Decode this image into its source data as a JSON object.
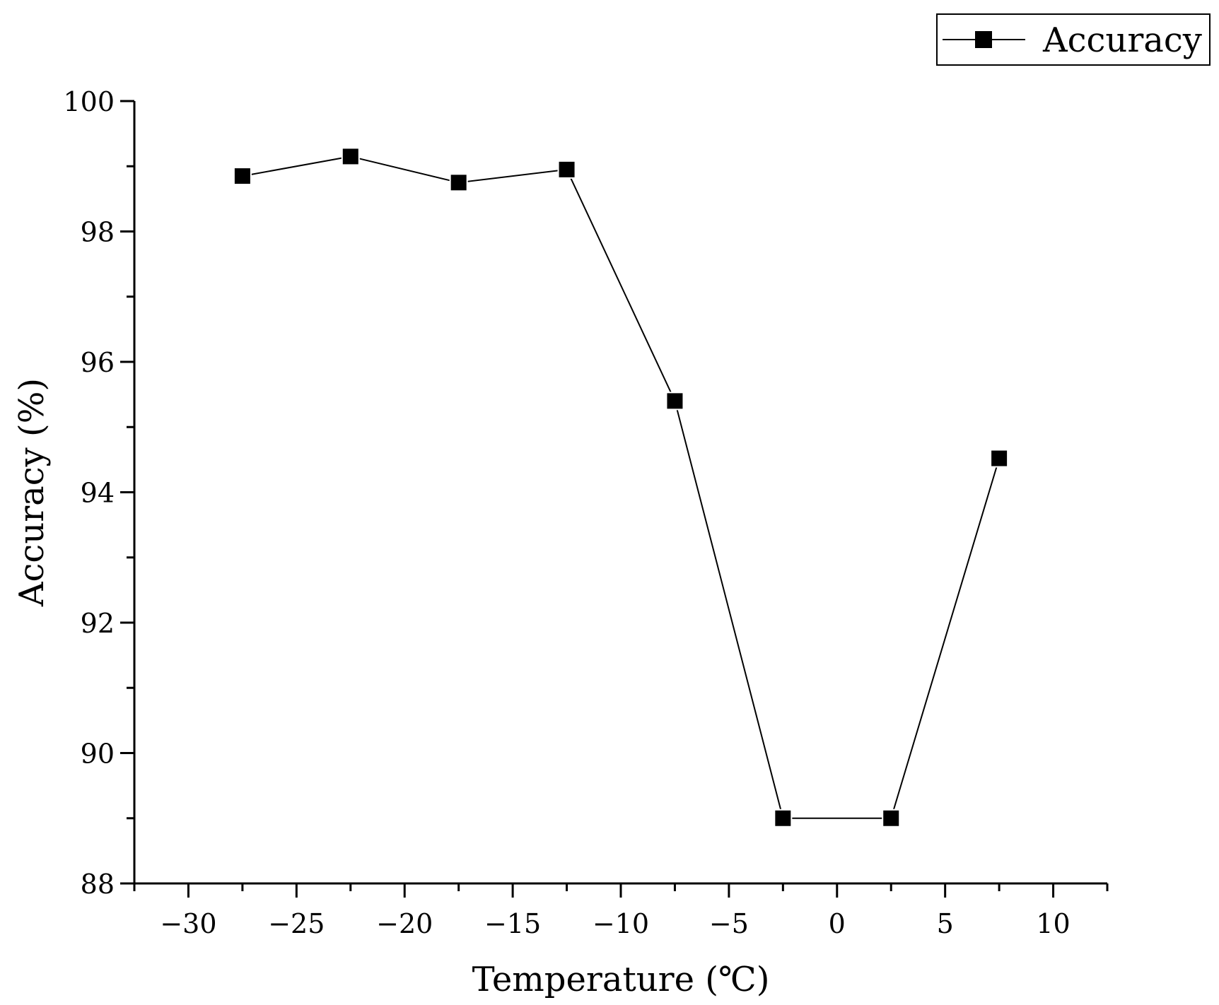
{
  "chart_data": {
    "type": "line",
    "xlabel": "Temperature (℃)",
    "ylabel": "Accuracy (%)",
    "xlim": [
      -32.5,
      12.5
    ],
    "ylim": [
      88,
      100
    ],
    "x_ticks": [
      -30,
      -25,
      -20,
      -15,
      -10,
      -5,
      0,
      5,
      10
    ],
    "x_tick_labels": [
      "−30",
      "−25",
      "−20",
      "−15",
      "−10",
      "−5",
      "0",
      "5",
      "10"
    ],
    "y_ticks": [
      88,
      90,
      92,
      94,
      96,
      98,
      100
    ],
    "y_tick_labels": [
      "88",
      "90",
      "92",
      "94",
      "96",
      "98",
      "100"
    ],
    "grid": false,
    "legend_position": "top-right",
    "series": [
      {
        "name": "Accuracy",
        "marker": "square",
        "color": "#000000",
        "x": [
          -27.5,
          -22.5,
          -17.5,
          -12.5,
          -7.5,
          -2.5,
          2.5,
          7.5
        ],
        "y": [
          98.85,
          99.15,
          98.75,
          98.95,
          95.4,
          89.0,
          89.0,
          94.52
        ]
      }
    ]
  }
}
